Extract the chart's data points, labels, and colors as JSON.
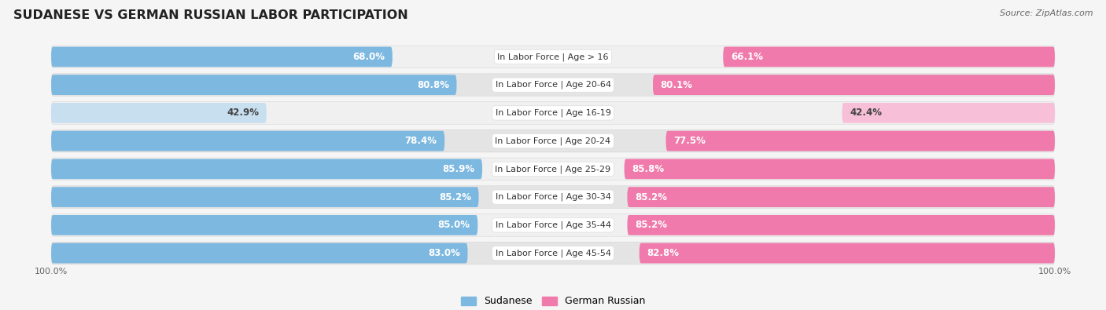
{
  "title": "SUDANESE VS GERMAN RUSSIAN LABOR PARTICIPATION",
  "source": "Source: ZipAtlas.com",
  "categories": [
    "In Labor Force | Age > 16",
    "In Labor Force | Age 20-64",
    "In Labor Force | Age 16-19",
    "In Labor Force | Age 20-24",
    "In Labor Force | Age 25-29",
    "In Labor Force | Age 30-34",
    "In Labor Force | Age 35-44",
    "In Labor Force | Age 45-54"
  ],
  "sudanese": [
    68.0,
    80.8,
    42.9,
    78.4,
    85.9,
    85.2,
    85.0,
    83.0
  ],
  "german_russian": [
    66.1,
    80.1,
    42.4,
    77.5,
    85.8,
    85.2,
    85.2,
    82.8
  ],
  "sudanese_color": "#7db8e0",
  "sudanese_color_light": "#c8dff0",
  "german_russian_color": "#f07aab",
  "german_russian_color_light": "#f7c0d8",
  "row_bg_even": "#f0f0f0",
  "row_bg_odd": "#e4e4e4",
  "bg_color": "#f5f5f5",
  "max_value": 100.0,
  "figsize": [
    14.06,
    3.95
  ],
  "dpi": 100
}
